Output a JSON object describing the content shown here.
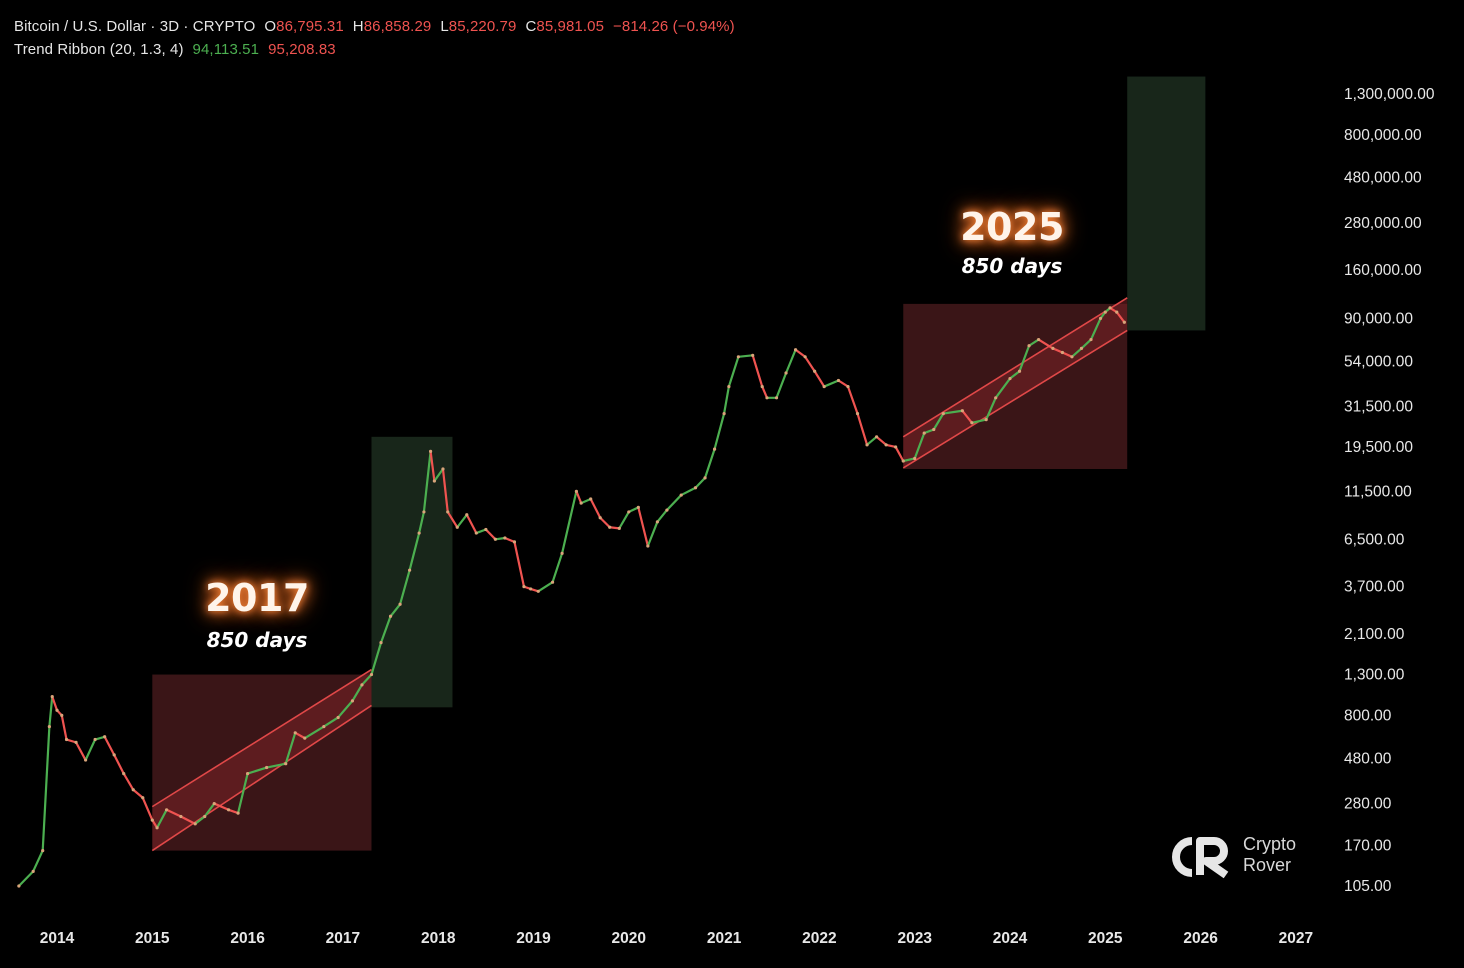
{
  "header": {
    "symbol": "Bitcoin / U.S. Dollar · 3D · CRYPTO",
    "open_key": "O",
    "open": "86,795.31",
    "high_key": "H",
    "high": "86,858.29",
    "low_key": "L",
    "low": "85,220.79",
    "close_key": "C",
    "close": "85,981.05",
    "change": "−814.26 (−0.94%)",
    "indicator": "Trend Ribbon (20, 1.3, 4)",
    "ind_val_1": "94,113.51",
    "ind_val_2": "95,208.83"
  },
  "annotations": {
    "cycle_1_year": "2017",
    "cycle_1_days": "850 days",
    "cycle_2_year": "2025",
    "cycle_2_days": "850 days"
  },
  "brand": {
    "line1": "Crypto",
    "line2": "Rover",
    "icon": "crypto-rover-logo"
  },
  "colors": {
    "background": "#000000",
    "up": "#4caf50",
    "down": "#ef5350",
    "accumulation_box": "#3a1517",
    "expansion_box": "#18261a",
    "channel_fill": "#7a2326",
    "channel_line": "#e04848"
  },
  "chart_data": {
    "type": "line",
    "scale": "log",
    "y_ticks": [
      "1,300,000.00",
      "800,000.00",
      "480,000.00",
      "280,000.00",
      "160,000.00",
      "90,000.00",
      "54,000.00",
      "31,500.00",
      "19,500.00",
      "11,500.00",
      "6,500.00",
      "3,700.00",
      "2,100.00",
      "1,300.00",
      "800.00",
      "480.00",
      "280.00",
      "170.00",
      "105.00"
    ],
    "x_ticks": [
      "2014",
      "2015",
      "2016",
      "2017",
      "2018",
      "2019",
      "2020",
      "2021",
      "2022",
      "2023",
      "2024",
      "2025",
      "2026",
      "2027"
    ],
    "ylim": [
      100,
      1300000
    ],
    "series": [
      {
        "x": [
          2013.6,
          2013.75,
          2013.85,
          2013.92,
          2013.95,
          2014.0,
          2014.05,
          2014.1,
          2014.2,
          2014.3,
          2014.4,
          2014.5,
          2014.6,
          2014.7,
          2014.8,
          2014.9,
          2015.0,
          2015.05,
          2015.15,
          2015.3,
          2015.45,
          2015.55,
          2015.65,
          2015.8,
          2015.9,
          2016.0,
          2016.2,
          2016.4,
          2016.5,
          2016.6,
          2016.8,
          2016.95,
          2017.1,
          2017.2,
          2017.3,
          2017.4,
          2017.5,
          2017.6,
          2017.7,
          2017.8,
          2017.85,
          2017.92,
          2017.96,
          2018.05,
          2018.1,
          2018.2,
          2018.3,
          2018.4,
          2018.5,
          2018.6,
          2018.7,
          2018.8,
          2018.9,
          2018.97,
          2019.05,
          2019.2,
          2019.3,
          2019.45,
          2019.5,
          2019.6,
          2019.7,
          2019.8,
          2019.9,
          2020.0,
          2020.1,
          2020.2,
          2020.3,
          2020.4,
          2020.55,
          2020.7,
          2020.8,
          2020.9,
          2021.0,
          2021.05,
          2021.15,
          2021.3,
          2021.4,
          2021.45,
          2021.55,
          2021.65,
          2021.75,
          2021.85,
          2021.95,
          2022.05,
          2022.2,
          2022.3,
          2022.4,
          2022.5,
          2022.6,
          2022.7,
          2022.8,
          2022.88,
          2023.0,
          2023.1,
          2023.2,
          2023.3,
          2023.5,
          2023.6,
          2023.75,
          2023.85,
          2024.0,
          2024.1,
          2024.2,
          2024.3,
          2024.45,
          2024.55,
          2024.65,
          2024.75,
          2024.85,
          2024.95,
          2025.0,
          2025.05,
          2025.12,
          2025.2
        ],
        "y": [
          105,
          125,
          160,
          700,
          1000,
          850,
          800,
          600,
          580,
          470,
          600,
          620,
          500,
          400,
          330,
          300,
          230,
          210,
          260,
          240,
          220,
          240,
          280,
          260,
          250,
          400,
          430,
          450,
          650,
          610,
          700,
          780,
          950,
          1150,
          1300,
          1900,
          2600,
          3000,
          4500,
          7000,
          9000,
          18500,
          13000,
          15000,
          9000,
          7500,
          8700,
          7000,
          7300,
          6500,
          6600,
          6300,
          3700,
          3600,
          3500,
          3900,
          5500,
          11500,
          10000,
          10500,
          8400,
          7500,
          7400,
          9000,
          9500,
          6000,
          8000,
          9200,
          11000,
          12000,
          13500,
          19000,
          29000,
          40000,
          57000,
          58000,
          40000,
          35000,
          35000,
          47000,
          62000,
          57000,
          48000,
          40000,
          43000,
          40000,
          29000,
          20000,
          22000,
          20000,
          19500,
          16500,
          17000,
          23000,
          24000,
          29000,
          30000,
          26000,
          27000,
          35000,
          44000,
          48000,
          65000,
          70000,
          63000,
          60000,
          57000,
          63000,
          70000,
          90000,
          97000,
          102000,
          97000,
          86000
        ]
      }
    ],
    "boxes": [
      {
        "kind": "accumulation",
        "x": [
          2015.0,
          2017.3
        ],
        "y": [
          160,
          1300
        ]
      },
      {
        "kind": "expansion",
        "x": [
          2017.3,
          2018.15
        ],
        "y": [
          880,
          22000
        ]
      },
      {
        "kind": "accumulation",
        "x": [
          2022.88,
          2025.23
        ],
        "y": [
          15000,
          107000
        ]
      },
      {
        "kind": "expansion",
        "x": [
          2025.23,
          2026.05
        ],
        "y": [
          78000,
          1600000
        ]
      }
    ],
    "channels": [
      {
        "x": [
          2015.0,
          2017.3
        ],
        "lower": [
          160,
          900
        ],
        "upper": [
          270,
          1380
        ]
      },
      {
        "x": [
          2022.88,
          2025.23
        ],
        "lower": [
          15200,
          78000
        ],
        "upper": [
          22000,
          115000
        ]
      }
    ]
  }
}
